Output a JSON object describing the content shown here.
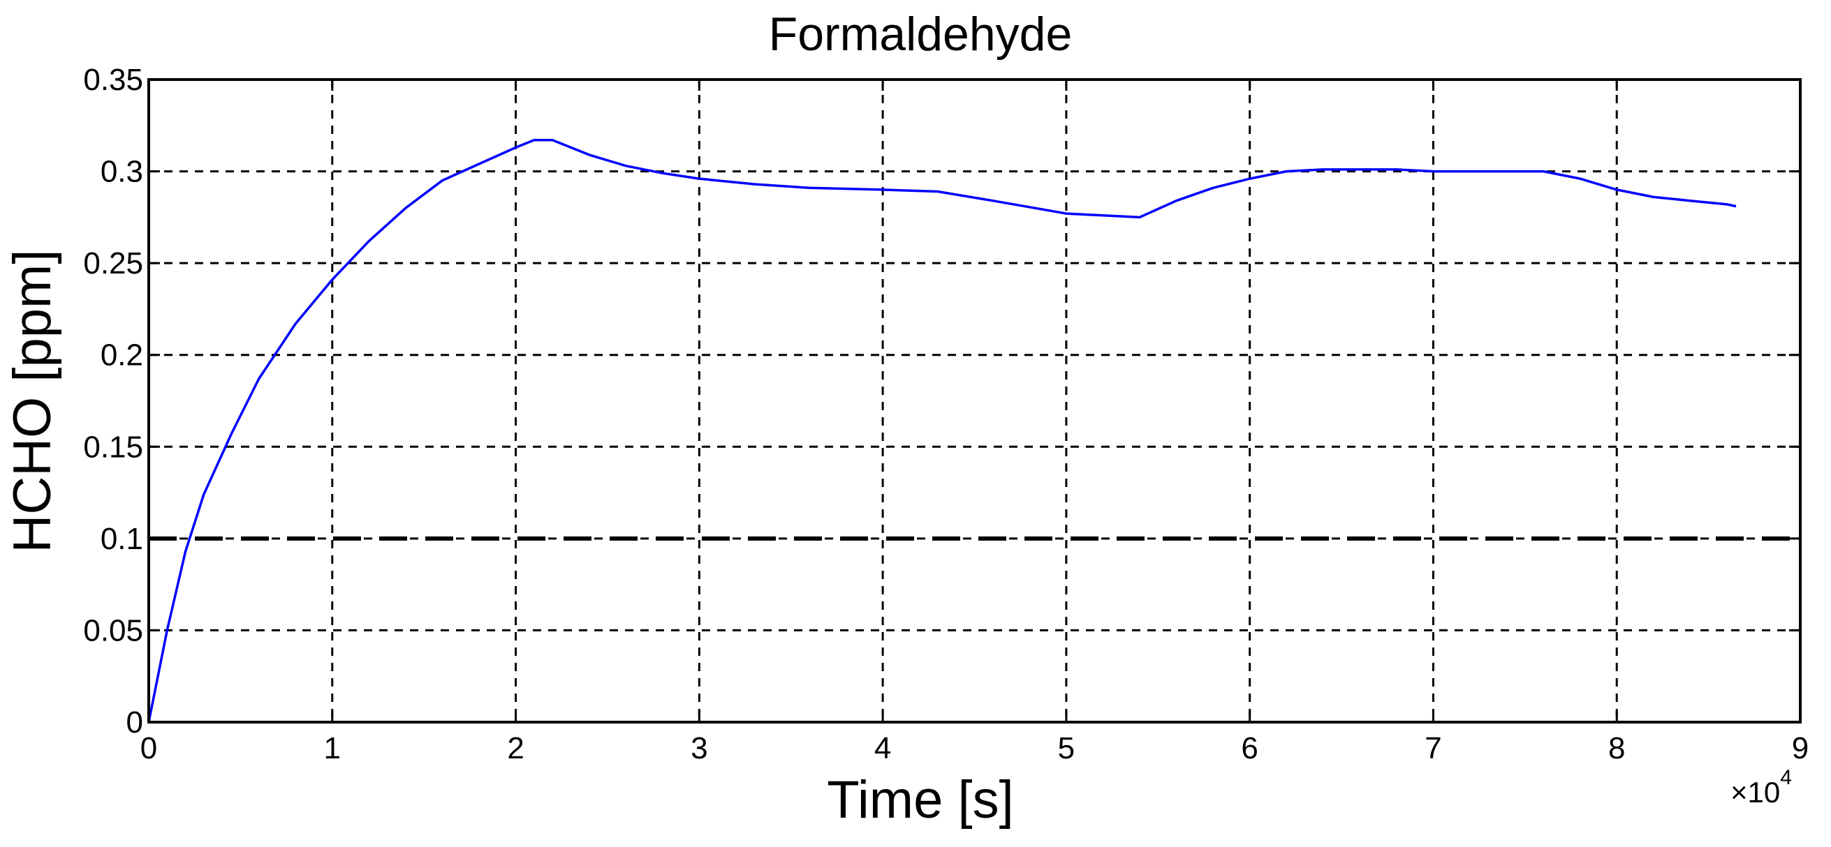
{
  "chart_data": {
    "type": "line",
    "title": "Formaldehyde",
    "xlabel": "Time [s]",
    "ylabel": "HCHO [ppm]",
    "x_multiplier_base": "×10",
    "x_multiplier_exponent": "4",
    "xlim": [
      0,
      9
    ],
    "ylim": [
      0,
      0.35
    ],
    "grid": true,
    "x_ticks": [
      "0",
      "1",
      "2",
      "3",
      "4",
      "5",
      "6",
      "7",
      "8",
      "9"
    ],
    "y_ticks": [
      "0",
      "0.05",
      "0.1",
      "0.15",
      "0.2",
      "0.25",
      "0.3",
      "0.35"
    ],
    "series": [
      {
        "color": "#0000ff",
        "style": "solid",
        "x": [
          0,
          0.1,
          0.2,
          0.3,
          0.45,
          0.6,
          0.8,
          1.0,
          1.2,
          1.4,
          1.6,
          1.8,
          2.0,
          2.1,
          2.2,
          2.4,
          2.6,
          2.8,
          3.0,
          3.3,
          3.6,
          4.0,
          4.3,
          4.6,
          5.0,
          5.2,
          5.4,
          5.6,
          5.8,
          6.0,
          6.2,
          6.4,
          6.6,
          6.8,
          7.0,
          7.3,
          7.6,
          7.8,
          8.0,
          8.2,
          8.4,
          8.6,
          8.65
        ],
        "y": [
          0,
          0.05,
          0.093,
          0.124,
          0.157,
          0.187,
          0.217,
          0.241,
          0.262,
          0.28,
          0.295,
          0.304,
          0.313,
          0.317,
          0.317,
          0.309,
          0.303,
          0.299,
          0.296,
          0.293,
          0.291,
          0.29,
          0.289,
          0.284,
          0.277,
          0.276,
          0.275,
          0.284,
          0.291,
          0.296,
          0.3,
          0.301,
          0.301,
          0.301,
          0.3,
          0.3,
          0.3,
          0.296,
          0.29,
          0.286,
          0.284,
          0.282,
          0.281
        ]
      },
      {
        "color": "#000000",
        "style": "dashed",
        "x": [
          0,
          9
        ],
        "y": [
          0.1,
          0.1
        ]
      }
    ]
  }
}
